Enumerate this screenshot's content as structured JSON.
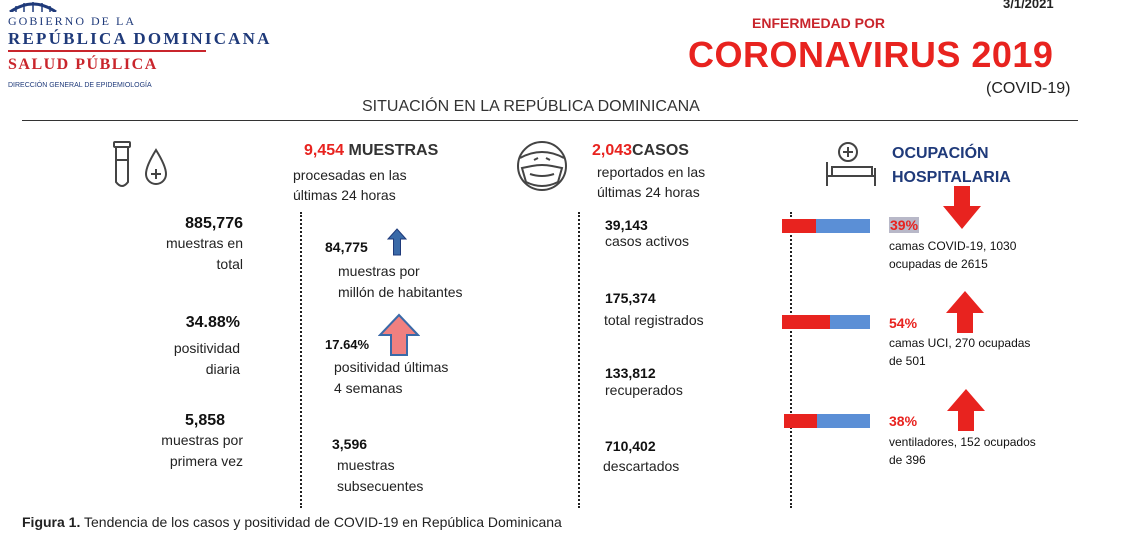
{
  "header": {
    "gov_line1": "GOBIERNO DE LA",
    "gov_line2": "REPÚBLICA DOMINICANA",
    "salud": "SALUD PÚBLICA",
    "direccion": "DIRECCIÓN GENERAL DE EPIDEMIOLOGÍA",
    "date": "3/1/2021",
    "enfermedad": "ENFERMEDAD POR",
    "title": "CORONAVIRUS 2019",
    "covid": "(COVID-19)",
    "situacion": "SITUACIÓN EN LA REPÚBLICA DOMINICANA"
  },
  "muestras_header": {
    "count": "9,454",
    "title": " MUESTRAS",
    "sub1": "procesadas en las",
    "sub2": "últimas 24 horas"
  },
  "casos_header": {
    "count": "2,043",
    "title": "CASOS",
    "sub1": "reportados en las",
    "sub2": "últimas 24 horas"
  },
  "ocupacion_header": {
    "line1": "OCUPACIÓN",
    "line2": "HOSPITALARIA"
  },
  "col1": [
    {
      "value": "885,776",
      "l1": "muestras en",
      "l2": "total"
    },
    {
      "value": "34.88%",
      "l1": "positividad",
      "l2": "diaria"
    },
    {
      "value": "5,858",
      "l1": "muestras por",
      "l2": "primera vez"
    }
  ],
  "col2": [
    {
      "value": "84,775",
      "l1": "muestras por",
      "l2": "millón de habitantes"
    },
    {
      "value": "17.64%",
      "l1": "positividad últimas",
      "l2": "4 semanas"
    },
    {
      "value": "3,596",
      "l1": "muestras",
      "l2": "subsecuentes"
    }
  ],
  "col3": [
    {
      "value": "39,143",
      "l1": "casos activos"
    },
    {
      "value": "175,374",
      "l1": "total registrados"
    },
    {
      "value": "133,812",
      "l1": "recuperados"
    },
    {
      "value": "710,402",
      "l1": "descartados"
    }
  ],
  "ocupacion": [
    {
      "pct": "39%",
      "fill": 0.39,
      "l1": "camas COVID-19,  1030",
      "l2": "ocupadas de 2615",
      "arrow": "down"
    },
    {
      "pct": "54%",
      "fill": 0.54,
      "l1": "camas UCI,  270 ocupadas",
      "l2": "de 501",
      "arrow": "up"
    },
    {
      "pct": "38%",
      "fill": 0.38,
      "l1": "ventiladores, 152 ocupados",
      "l2": "de 396",
      "arrow": "up"
    }
  ],
  "caption": {
    "bold": "Figura 1.",
    "text": " Tendencia de los casos y positividad de COVID-19 en República Dominicana"
  },
  "colors": {
    "red": "#e8231f",
    "blue_bar": "#5b8fd6",
    "navy": "#1f3a7a",
    "arrow_up_fill": "#f08080",
    "arrow_blue": "#3a6aa8"
  }
}
